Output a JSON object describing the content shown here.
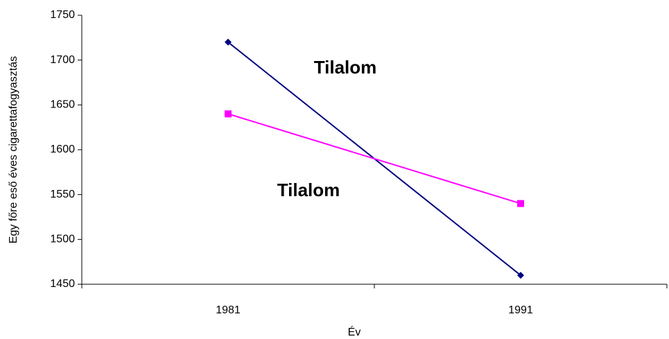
{
  "chart_data": {
    "type": "line",
    "x_label": "Év",
    "y_label": "Egy főre eső éves cigarettafogyasztás",
    "categories": [
      "1981",
      "1991"
    ],
    "series": [
      {
        "color": "#000080",
        "marker": "diamond",
        "values": [
          1720,
          1460
        ]
      },
      {
        "color": "#ff00ff",
        "marker": "square",
        "values": [
          1640,
          1540
        ]
      }
    ],
    "annotations": [
      "Tilalom",
      "Tilalom"
    ],
    "ylim": [
      1450,
      1750
    ],
    "yticks": [
      1450,
      1500,
      1550,
      1600,
      1650,
      1700,
      1750
    ],
    "grid": false
  }
}
